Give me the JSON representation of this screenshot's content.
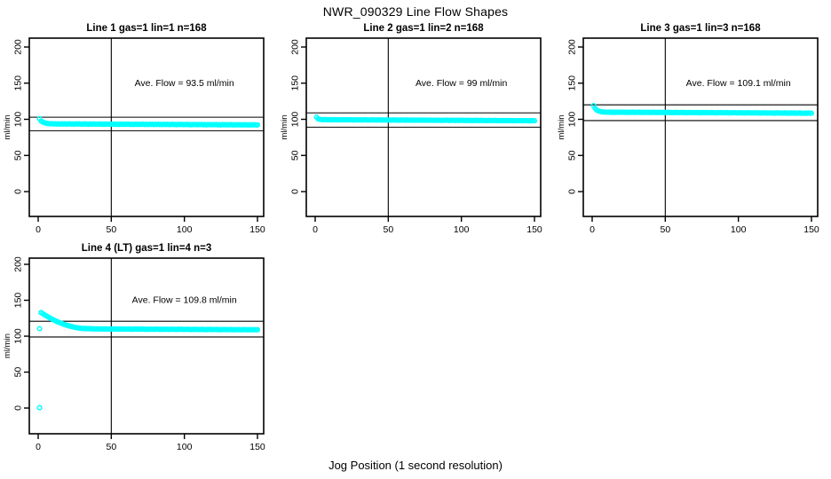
{
  "chart_data": {
    "type": "scatter",
    "figure_title": "NWR_090329  Line Flow Shapes",
    "x_label": "Jog Position (1 second resolution)",
    "y_label": "ml/min",
    "x_ticks": [
      0,
      50,
      100,
      150
    ],
    "y_ticks": [
      0,
      50,
      100,
      150,
      200
    ],
    "xlim": [
      0,
      150
    ],
    "ylim": [
      0,
      200
    ],
    "marker_color": "#00FFFF",
    "line_color": "#000000",
    "vline_x": 50,
    "panels": [
      {
        "title": "Line 1 gas=1 lin=1 n=168",
        "gas": 1,
        "lin": 1,
        "n": 168,
        "annotation": "Ave. Flow =  93.5  ml/min",
        "ave_flow": 93.5,
        "hlines": [
          102.9,
          84.2
        ],
        "grid": {
          "row": 0,
          "col": 0
        },
        "x_start": 1,
        "y": [
          101.0,
          97.6,
          96.3,
          95.4,
          94.8,
          94.4,
          94.1,
          93.9,
          93.8,
          93.7,
          93.6,
          93.9,
          93.4,
          93.7,
          93.3,
          93.8,
          93.5,
          93.8,
          93.4,
          93.6,
          93.5,
          93.8,
          93.3,
          93.6,
          93.2,
          93.7,
          93.4,
          93.7,
          93.3,
          93.5,
          93.4,
          93.7,
          93.2,
          93.5,
          93.1,
          93.6,
          93.3,
          93.6,
          93.2,
          93.4,
          93.3,
          93.6,
          93.1,
          93.4,
          93.0,
          93.5,
          93.2,
          93.5,
          93.1,
          93.3,
          93.2,
          93.5,
          93.0,
          93.3,
          92.9,
          93.4,
          93.1,
          93.4,
          93.0,
          93.2,
          93.1,
          93.4,
          92.9,
          93.2,
          92.8,
          93.3,
          93.0,
          93.3,
          92.9,
          93.1,
          93.0,
          93.3,
          92.8,
          93.1,
          92.7,
          93.2,
          92.9,
          93.2,
          92.8,
          93.0,
          92.9,
          93.2,
          92.7,
          93.0,
          92.6,
          93.1,
          92.8,
          93.1,
          92.7,
          92.9,
          92.8,
          93.1,
          92.6,
          92.9,
          92.5,
          93.0,
          92.7,
          93.0,
          92.6,
          92.8,
          92.7,
          93.0,
          92.5,
          92.8,
          92.4,
          92.9,
          92.6,
          92.9,
          92.5,
          92.7,
          92.6,
          92.9,
          92.4,
          92.7,
          92.3,
          92.8,
          92.5,
          92.8,
          92.4,
          92.6,
          92.5,
          92.8,
          92.3,
          92.6,
          92.2,
          92.7,
          92.4,
          92.7,
          92.3,
          92.5,
          92.4,
          92.7,
          92.2,
          92.5,
          92.1,
          92.6,
          92.3,
          92.6,
          92.2,
          92.4,
          92.3,
          92.6,
          92.1,
          92.4,
          92.0,
          92.5,
          92.2,
          92.5,
          92.1,
          92.3
        ]
      },
      {
        "title": "Line 2 gas=1 lin=2 n=168",
        "gas": 1,
        "lin": 2,
        "n": 168,
        "annotation": "Ave. Flow =  99  ml/min",
        "ave_flow": 99,
        "hlines": [
          108.9,
          89.1
        ],
        "grid": {
          "row": 0,
          "col": 1
        },
        "x_start": 1,
        "y": [
          103.0,
          100.6,
          100.0,
          99.7,
          99.6,
          99.5,
          99.7,
          99.4,
          99.6,
          99.3,
          99.5,
          99.2,
          99.6,
          99.3,
          99.5,
          99.1,
          99.4,
          99.2,
          99.5,
          99.3,
          99.4,
          99.1,
          99.5,
          99.2,
          99.4,
          99.0,
          99.3,
          99.1,
          99.4,
          99.2,
          99.3,
          99.0,
          99.4,
          99.1,
          99.3,
          98.9,
          99.2,
          99.0,
          99.3,
          99.1,
          99.2,
          98.9,
          99.3,
          99.0,
          99.2,
          98.8,
          99.1,
          98.9,
          99.2,
          99.0,
          99.1,
          98.8,
          99.2,
          98.9,
          99.1,
          98.7,
          99.0,
          98.8,
          99.1,
          98.9,
          99.0,
          98.7,
          99.1,
          98.8,
          99.0,
          98.6,
          98.9,
          98.7,
          99.0,
          98.8,
          98.9,
          98.6,
          99.0,
          98.7,
          98.9,
          98.5,
          98.8,
          98.6,
          98.9,
          98.7,
          98.8,
          98.5,
          98.9,
          98.6,
          98.8,
          98.4,
          98.7,
          98.5,
          98.8,
          98.6,
          98.7,
          98.4,
          98.8,
          98.5,
          98.7,
          98.3,
          98.6,
          98.4,
          98.7,
          98.5,
          98.6,
          98.3,
          98.7,
          98.4,
          98.6,
          98.2,
          98.5,
          98.3,
          98.6,
          98.4,
          98.5,
          98.2,
          98.6,
          98.3,
          98.5,
          98.1,
          98.4,
          98.2,
          98.5,
          98.3,
          98.4,
          98.1,
          98.5,
          98.2,
          98.4,
          98.0,
          98.3,
          98.1,
          98.4,
          98.2,
          98.3,
          98.0,
          98.4,
          98.1,
          98.3,
          97.9,
          98.2,
          98.0,
          98.3,
          98.1,
          98.2,
          97.9,
          98.3,
          98.0,
          98.2,
          97.8,
          98.1,
          97.9,
          98.2,
          98.0
        ]
      },
      {
        "title": "Line 3 gas=1 lin=3 n=168",
        "gas": 1,
        "lin": 3,
        "n": 168,
        "annotation": "Ave. Flow =  109.1  ml/min",
        "ave_flow": 109.1,
        "hlines": [
          120.0,
          98.2
        ],
        "grid": {
          "row": 0,
          "col": 2
        },
        "x_start": 1,
        "y": [
          119.0,
          115.2,
          113.0,
          111.8,
          111.0,
          110.6,
          110.3,
          110.1,
          110.0,
          109.9,
          109.8,
          110.1,
          109.6,
          109.9,
          109.5,
          110.0,
          109.7,
          110.0,
          109.6,
          109.8,
          109.7,
          110.0,
          109.5,
          109.8,
          109.4,
          109.9,
          109.6,
          109.9,
          109.5,
          109.7,
          109.6,
          109.9,
          109.4,
          109.7,
          109.3,
          109.8,
          109.5,
          109.8,
          109.4,
          109.6,
          109.5,
          109.8,
          109.3,
          109.6,
          109.2,
          109.7,
          109.4,
          109.7,
          109.3,
          109.5,
          109.4,
          109.7,
          109.2,
          109.5,
          109.1,
          109.6,
          109.3,
          109.6,
          109.2,
          109.4,
          109.3,
          109.6,
          109.1,
          109.4,
          109.0,
          109.5,
          109.2,
          109.5,
          109.1,
          109.3,
          109.2,
          109.5,
          109.0,
          109.3,
          108.9,
          109.4,
          109.1,
          109.4,
          109.0,
          109.2,
          109.1,
          109.4,
          108.9,
          109.2,
          108.8,
          109.3,
          109.0,
          109.3,
          108.9,
          109.1,
          109.0,
          109.3,
          108.8,
          109.1,
          108.7,
          109.2,
          108.9,
          109.2,
          108.8,
          109.0,
          108.9,
          109.2,
          108.7,
          109.0,
          108.6,
          109.1,
          108.8,
          109.1,
          108.7,
          108.9,
          108.8,
          109.1,
          108.6,
          108.9,
          108.5,
          109.0,
          108.7,
          109.0,
          108.6,
          108.8,
          108.7,
          109.0,
          108.5,
          108.8,
          108.4,
          108.9,
          108.6,
          108.9,
          108.5,
          108.7,
          108.6,
          108.9,
          108.4,
          108.7,
          108.3,
          108.8,
          108.5,
          108.8,
          108.4,
          108.6,
          108.5,
          108.8,
          108.3,
          108.6,
          108.2,
          108.7,
          108.4,
          108.7,
          108.3,
          108.5
        ]
      },
      {
        "title": "Line 4 (LT) gas=1 lin=4 n=3",
        "gas": 1,
        "lin": 4,
        "n": 3,
        "annotation": "Ave. Flow =  109.8  ml/min",
        "ave_flow": 109.8,
        "hlines": [
          120.8,
          98.8
        ],
        "grid": {
          "row": 1,
          "col": 0
        },
        "x_start": 2,
        "outliers": [
          [
            1,
            0.5
          ],
          [
            1,
            110.5
          ]
        ],
        "y": [
          133.0,
          131.5,
          130.2,
          129.0,
          127.8,
          126.6,
          125.4,
          124.3,
          123.2,
          122.2,
          121.2,
          120.3,
          119.4,
          118.6,
          117.8,
          117.0,
          116.3,
          115.6,
          115.0,
          114.4,
          113.8,
          113.3,
          112.8,
          112.4,
          112.0,
          111.6,
          111.3,
          111.0,
          110.7,
          110.5,
          110.9,
          110.3,
          110.7,
          110.2,
          110.6,
          110.1,
          110.5,
          110.0,
          110.4,
          110.0,
          110.3,
          109.9,
          110.2,
          109.8,
          110.2,
          109.9,
          110.1,
          109.8,
          110.0,
          109.9,
          110.2,
          109.7,
          110.0,
          109.6,
          110.1,
          109.8,
          110.1,
          109.7,
          109.9,
          109.8,
          110.1,
          109.6,
          109.9,
          109.5,
          110.0,
          109.7,
          110.0,
          109.6,
          109.8,
          109.7,
          110.0,
          109.5,
          109.8,
          109.4,
          109.9,
          109.6,
          109.9,
          109.5,
          109.7,
          109.6,
          109.9,
          109.4,
          109.7,
          109.3,
          109.8,
          109.5,
          109.8,
          109.4,
          109.6,
          109.5,
          109.8,
          109.3,
          109.6,
          109.2,
          109.7,
          109.4,
          109.7,
          109.3,
          109.5,
          109.4,
          109.7,
          109.2,
          109.5,
          109.1,
          109.6,
          109.3,
          109.6,
          109.2,
          109.4,
          109.3,
          109.6,
          109.1,
          109.4,
          109.0,
          109.5,
          109.2,
          109.5,
          109.1,
          109.3,
          109.2,
          109.5,
          109.0,
          109.3,
          108.9,
          109.4,
          109.1,
          109.4,
          109.0,
          109.2,
          109.1,
          109.4,
          108.9,
          109.2,
          108.8,
          109.3,
          109.0,
          109.3,
          108.9,
          109.1,
          109.0,
          109.3,
          108.8,
          109.1,
          108.7,
          109.2,
          108.9,
          109.2,
          108.8,
          109.0
        ]
      }
    ]
  }
}
